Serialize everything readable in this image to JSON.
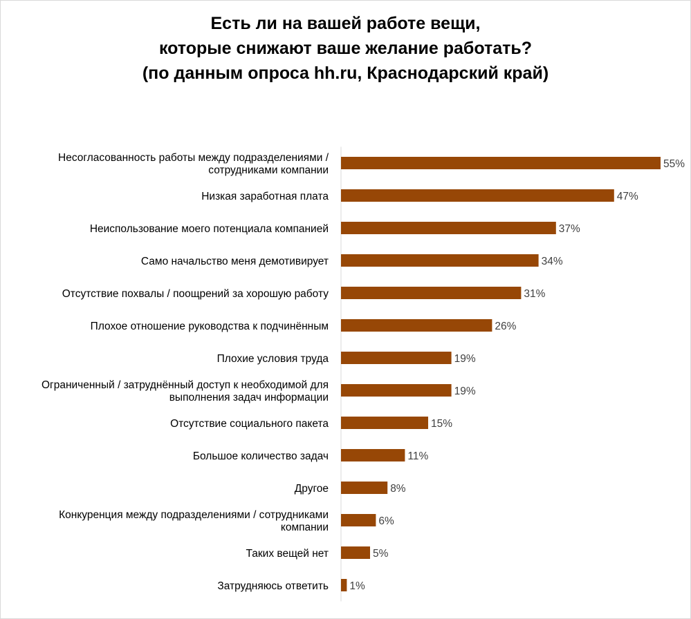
{
  "chart_data": {
    "type": "bar",
    "orientation": "horizontal",
    "title_lines": [
      "Есть ли на вашей работе вещи,",
      "которые снижают ваше желание работать?",
      "(по данным опроса hh.ru, Краснодарский край)"
    ],
    "categories": [
      [
        "Несогласованность работы между подразделениями /",
        "сотрудниками компании"
      ],
      [
        "Низкая заработная плата"
      ],
      [
        "Неиспользование моего потенциала компанией"
      ],
      [
        "Само начальство меня демотивирует"
      ],
      [
        "Отсутствие похвалы / поощрений за хорошую работу"
      ],
      [
        "Плохое отношение руководства к подчинённым"
      ],
      [
        "Плохие условия труда"
      ],
      [
        "Ограниченный / затруднённый доступ к необходимой для",
        "выполнения задач информации"
      ],
      [
        "Отсутствие социального пакета"
      ],
      [
        "Большое количество задач"
      ],
      [
        "Другое"
      ],
      [
        "Конкуренция между подразделениями / сотрудниками",
        "компании"
      ],
      [
        "Таких вещей нет"
      ],
      [
        "Затрудняюсь ответить"
      ]
    ],
    "values": [
      55,
      47,
      37,
      34,
      31,
      26,
      19,
      19,
      15,
      11,
      8,
      6,
      5,
      1
    ],
    "value_labels": [
      "55%",
      "47%",
      "37%",
      "34%",
      "31%",
      "26%",
      "19%",
      "19%",
      "15%",
      "11%",
      "8%",
      "6%",
      "5%",
      "1%"
    ],
    "xlim": [
      0,
      55
    ],
    "grid": false,
    "legend": "none",
    "bar_color": "#974706",
    "axis_color": "#d9d9d9"
  }
}
